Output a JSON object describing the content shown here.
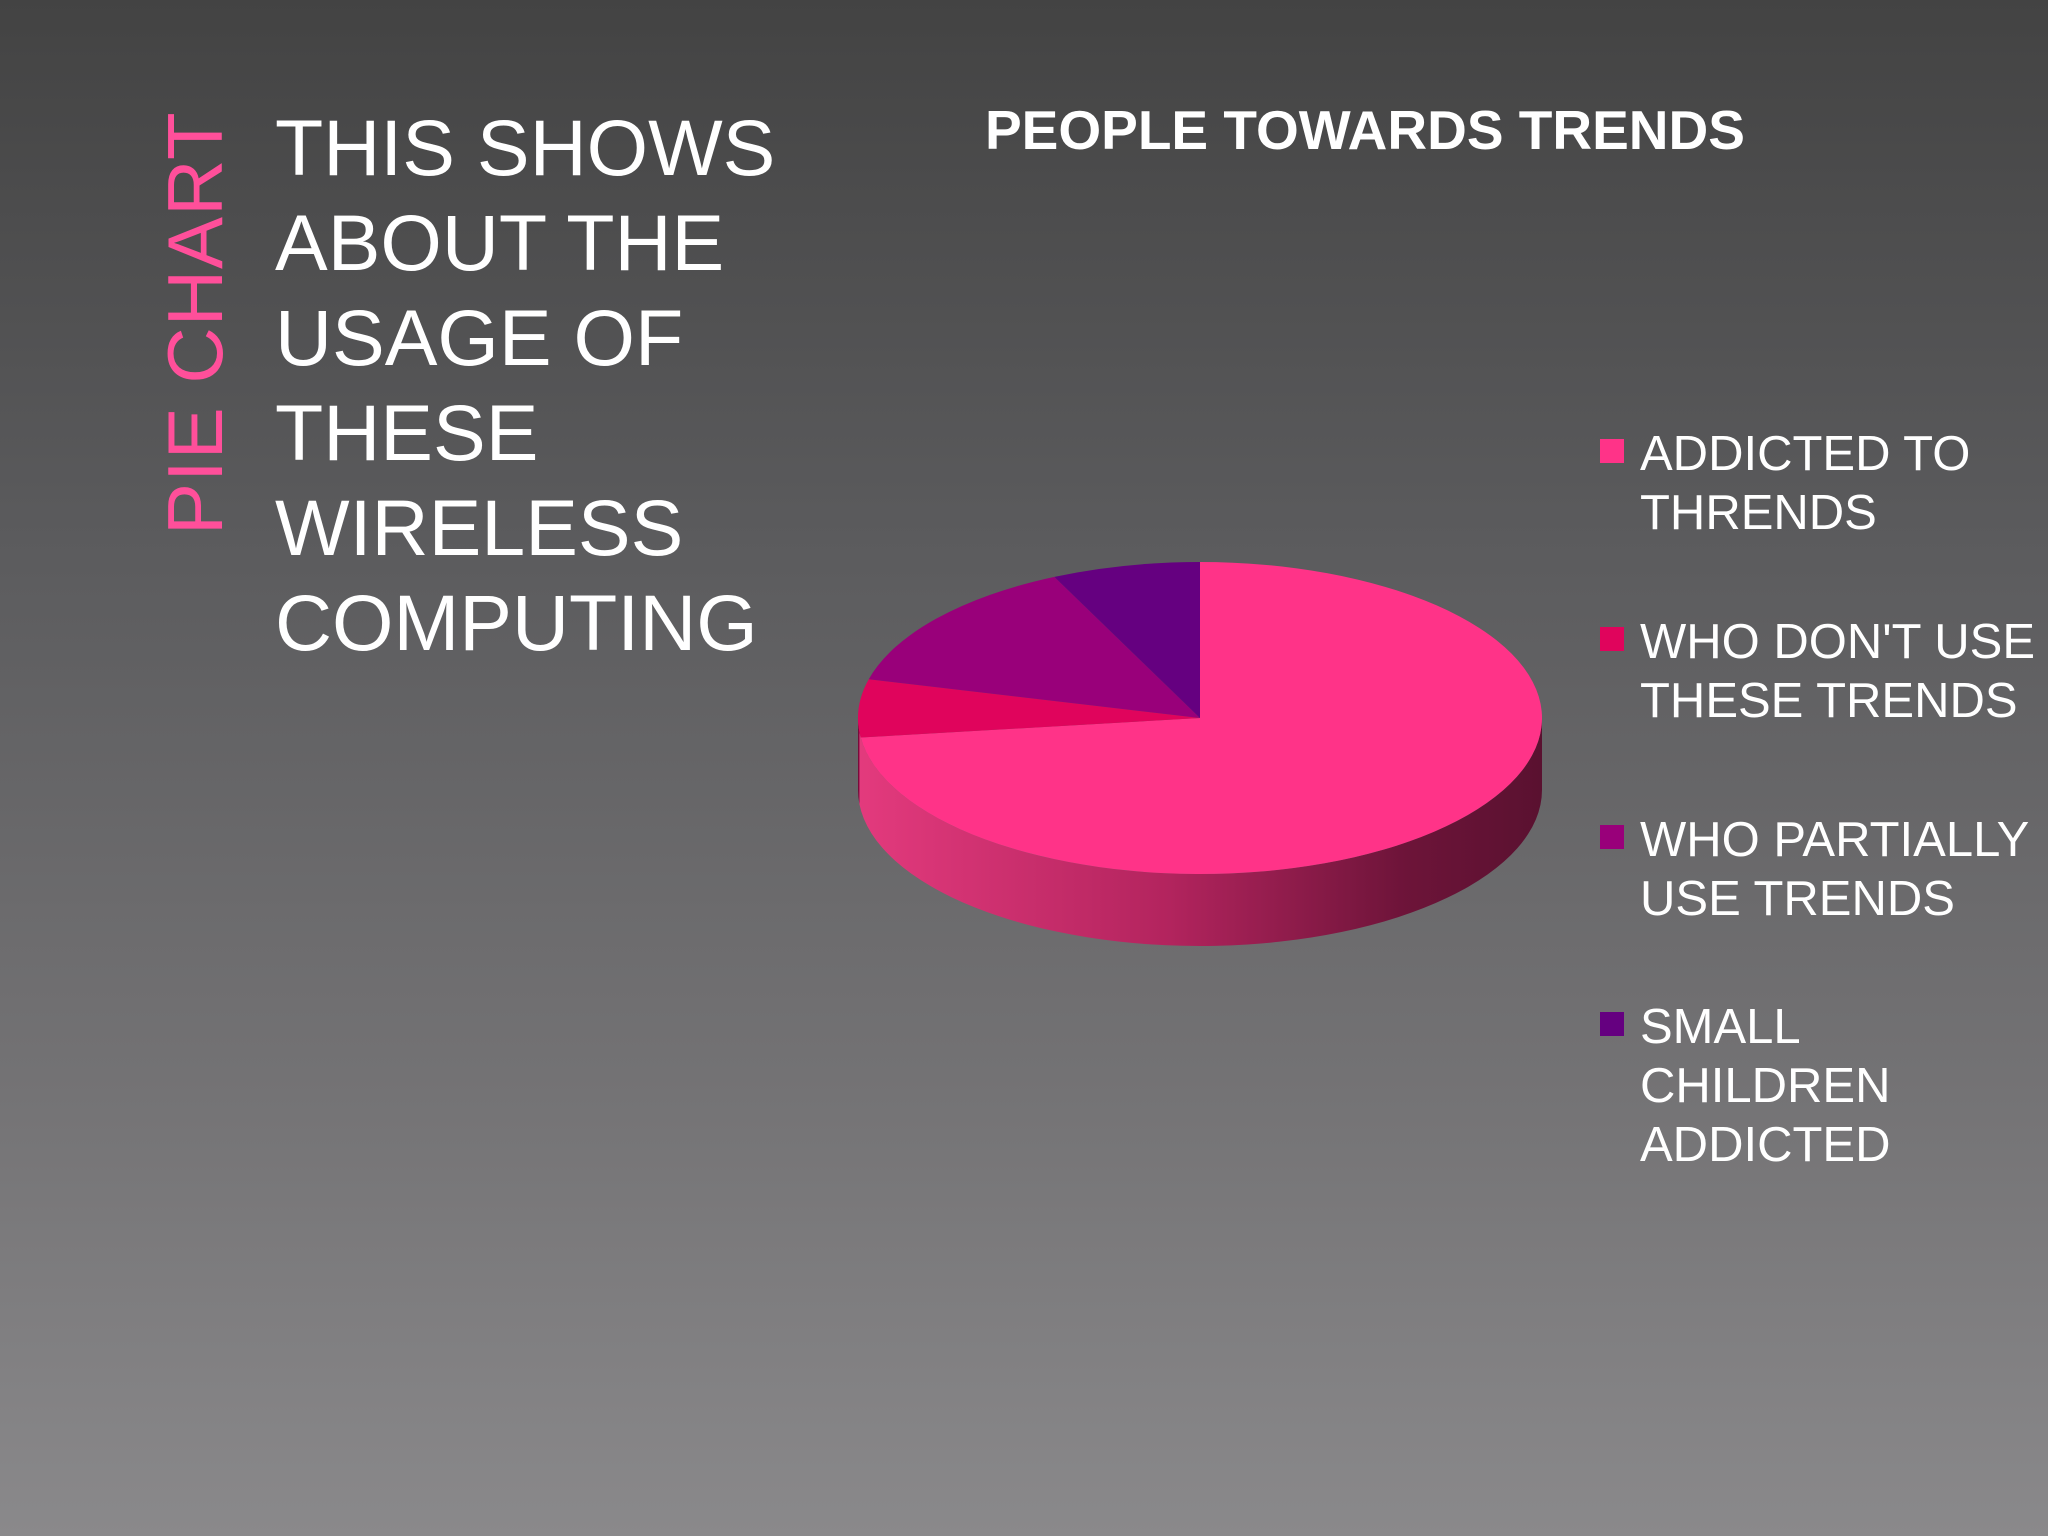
{
  "slide": {
    "vertical_title": "PIE CHART",
    "description_lines": [
      "THIS SHOWS",
      "ABOUT THE",
      "USAGE OF",
      "THESE",
      "WIRELESS",
      "COMPUTING"
    ]
  },
  "chart_data": {
    "type": "pie",
    "title": "PEOPLE TOWARDS TRENDS",
    "legend_position": "right",
    "three_d": true,
    "slices": [
      {
        "label": "ADDICTED TO THRENDS",
        "value": 73,
        "color": "#ff3388"
      },
      {
        "label": "WHO DON'T USE THESE TRENDS",
        "value": 6,
        "color": "#e0045c"
      },
      {
        "label": "WHO PARTIALLY USE TRENDS",
        "value": 14,
        "color": "#99007a"
      },
      {
        "label": "SMALL CHILDREN ADDICTED",
        "value": 7,
        "color": "#650080"
      }
    ]
  }
}
